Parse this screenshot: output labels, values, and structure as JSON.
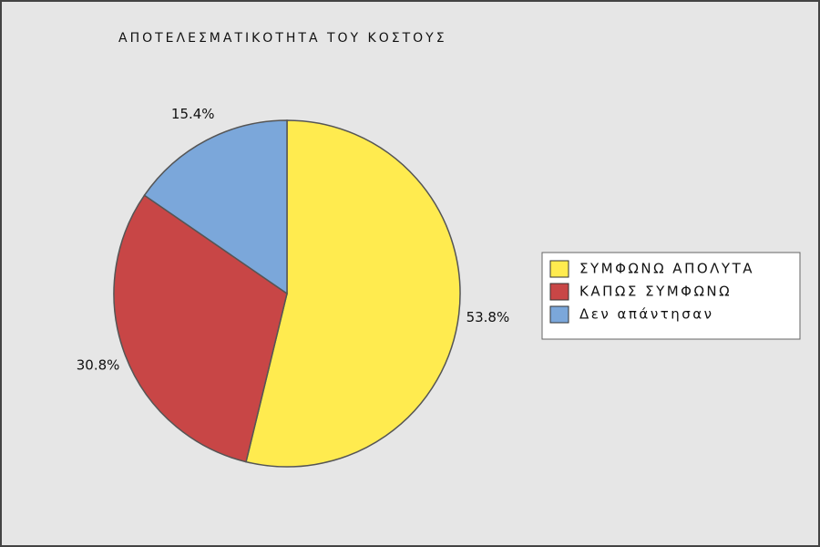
{
  "chart_data": {
    "type": "pie",
    "title": "ΑΠΟΤΕΛΕΣΜΑΤΙΚΟΤΗΤΑ ΤΟΥ ΚΟΣΤΟΥΣ",
    "categories": [
      "ΣΥΜΦΩΝΩ ΑΠΟΛΥΤΑ",
      "ΚΑΠΩΣ ΣΥΜΦΩΝΩ",
      "Δεν απάντησαν"
    ],
    "values": [
      53.8,
      30.8,
      15.4
    ],
    "value_labels": [
      "53.8%",
      "30.8%",
      "15.4%"
    ],
    "colors": [
      "#ffeb4f",
      "#c84646",
      "#7ba7da"
    ],
    "legend": "right"
  }
}
